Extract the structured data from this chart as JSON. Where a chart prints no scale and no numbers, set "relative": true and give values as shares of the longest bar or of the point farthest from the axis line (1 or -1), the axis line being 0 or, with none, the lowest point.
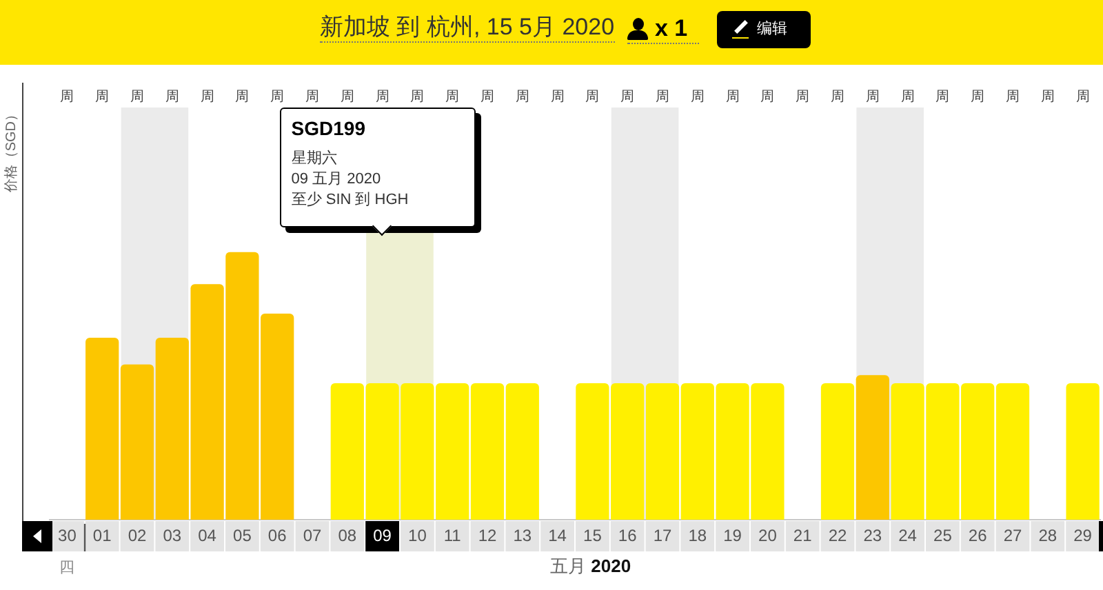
{
  "chart_data": {
    "type": "bar",
    "title": "新加坡 到 杭州, 15 5月 2020",
    "xlabel": "五月 2020",
    "ylabel": "价格（SGD）",
    "categories": [
      "30",
      "01",
      "02",
      "03",
      "04",
      "05",
      "06",
      "07",
      "08",
      "09",
      "10",
      "11",
      "12",
      "13",
      "14",
      "15",
      "16",
      "17",
      "18",
      "19",
      "20",
      "21",
      "22",
      "23",
      "24",
      "25",
      "26",
      "27",
      "28",
      "29"
    ],
    "values": [
      null,
      0.68,
      0.58,
      0.68,
      0.88,
      1,
      0.77,
      null,
      0.51,
      0.51,
      0.51,
      0.51,
      0.51,
      0.51,
      null,
      0.51,
      0.51,
      0.51,
      0.51,
      0.51,
      0.51,
      null,
      0.51,
      0.54,
      0.51,
      0.51,
      0.51,
      0.51,
      null,
      0.51
    ],
    "colors": [
      null,
      "#fcc600",
      "#fcc600",
      "#fcc600",
      "#fcc600",
      "#fcc600",
      "#fcc600",
      null,
      "#fff000",
      "#fff000",
      "#fff000",
      "#fff000",
      "#fff000",
      "#fff000",
      null,
      "#fff000",
      "#fff000",
      "#fff000",
      "#fff000",
      "#fff000",
      "#fff000",
      null,
      "#fff000",
      "#fcc600",
      "#fff000",
      "#fff000",
      "#fff000",
      "#fff000",
      null,
      "#fff000"
    ],
    "relative": true,
    "bands": [
      {
        "axis": "x",
        "from": "02",
        "to": "03",
        "color": "#ebebeb"
      },
      {
        "axis": "x",
        "from": "09",
        "to": "10",
        "color": "#eef0d2"
      },
      {
        "axis": "x",
        "from": "16",
        "to": "17",
        "color": "#ebebeb"
      },
      {
        "axis": "x",
        "from": "23",
        "to": "24",
        "color": "#ebebeb"
      }
    ],
    "annotations": [
      "SGD199\n星期六\n09 五月 2020\n至少 SIN 到 HGH",
      "x 1",
      "编辑",
      "四",
      "周",
      "周",
      "周",
      "周",
      "周",
      "周",
      "周",
      "周",
      "周",
      "周",
      "周",
      "周",
      "周",
      "周",
      "周",
      "周",
      "周",
      "周",
      "周",
      "周",
      "周",
      "周",
      "周",
      "周",
      "周",
      "周",
      "周",
      "周",
      "周",
      "周"
    ]
  }
}
